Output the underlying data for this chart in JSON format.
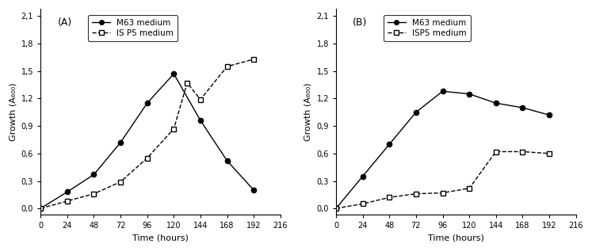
{
  "panel_A": {
    "label": "(A)",
    "x_M63": [
      0,
      24,
      48,
      72,
      96,
      120,
      144,
      168,
      192
    ],
    "y_M63": [
      0.0,
      0.18,
      0.37,
      0.72,
      1.15,
      1.47,
      0.96,
      0.52,
      0.2
    ],
    "x_ISP5": [
      0,
      24,
      48,
      72,
      96,
      120,
      132,
      144,
      168,
      192
    ],
    "y_ISP5": [
      0.0,
      0.08,
      0.16,
      0.29,
      0.55,
      0.87,
      1.37,
      1.19,
      1.55,
      1.63
    ],
    "legend_M63": "M63 medium",
    "legend_ISP5": "IS P5 medium",
    "xlabel": "Time (hours)",
    "ylabel": "Growth (A₆₀₀)",
    "ytick_vals": [
      0.0,
      0.3,
      0.6,
      0.9,
      1.2,
      1.5,
      1.8,
      2.1
    ],
    "ytick_labels": [
      "0,0",
      "0,3",
      "0,6",
      "0,9",
      "1,2",
      "1,5",
      "1,8",
      "2,1"
    ],
    "xticks": [
      0,
      24,
      48,
      72,
      96,
      120,
      144,
      168,
      192,
      216
    ],
    "ylim": [
      -0.07,
      2.18
    ],
    "xlim": [
      0,
      216
    ]
  },
  "panel_B": {
    "label": "(B)",
    "x_M63": [
      0,
      24,
      48,
      72,
      96,
      120,
      144,
      168,
      192
    ],
    "y_M63": [
      0.0,
      0.35,
      0.7,
      1.05,
      1.28,
      1.25,
      1.15,
      1.1,
      1.02
    ],
    "x_ISP5": [
      0,
      24,
      48,
      72,
      96,
      120,
      144,
      168,
      192
    ],
    "y_ISP5": [
      0.0,
      0.05,
      0.12,
      0.16,
      0.17,
      0.22,
      0.62,
      0.62,
      0.6
    ],
    "legend_M63": "M63 medium",
    "legend_ISP5": "ISP5 medium",
    "xlabel": "Time (hours)",
    "ylabel": "Growth (A₆₀₀)",
    "ytick_vals": [
      0.0,
      0.3,
      0.6,
      0.9,
      1.2,
      1.5,
      1.8,
      2.1
    ],
    "ytick_labels": [
      "0,0",
      "0,3",
      "0,6",
      "0,9",
      "1,2",
      "1,5",
      "1,8",
      "2,1"
    ],
    "xticks": [
      0,
      24,
      48,
      72,
      96,
      120,
      144,
      168,
      192,
      216
    ],
    "ylim": [
      -0.07,
      2.18
    ],
    "xlim": [
      0,
      216
    ]
  },
  "fig_color": "#ffffff",
  "line_color": "#000000",
  "fontsize_label": 8,
  "fontsize_tick": 7,
  "fontsize_legend": 7.5,
  "fontsize_panel": 9
}
